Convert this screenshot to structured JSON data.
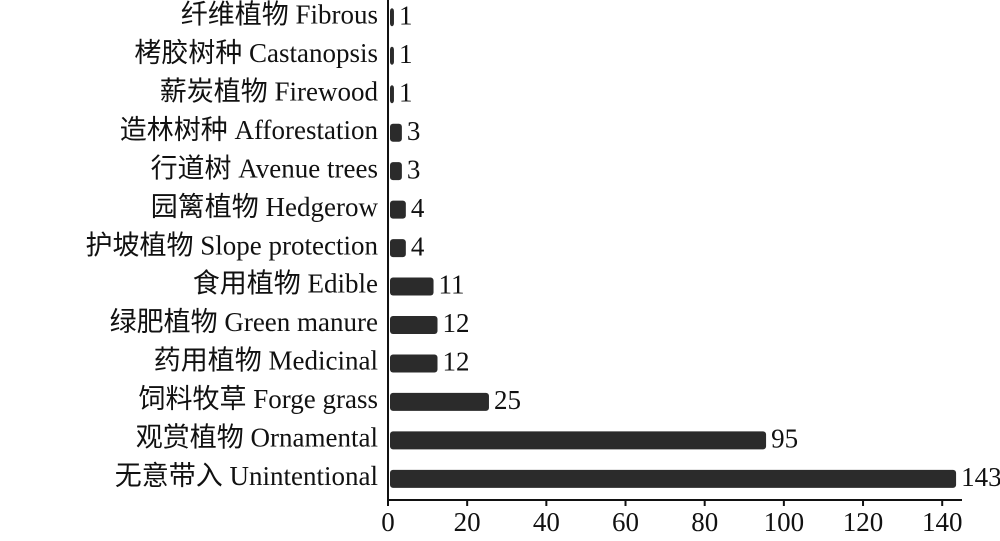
{
  "chart_data": {
    "type": "barh",
    "categories": [
      "纤维植物 Fibrous",
      "栲胶树种 Castanopsis",
      "薪炭植物 Firewood",
      "造林树种 Afforestation",
      "行道树 Avenue trees",
      "园篱植物 Hedgerow",
      "护坡植物 Slope protection",
      "食用植物 Edible",
      "绿肥植物 Green manure",
      "药用植物 Medicinal",
      "饲料牧草 Forge grass",
      "观赏植物 Ornamental",
      "无意带入 Unintentional"
    ],
    "values": [
      1,
      1,
      1,
      3,
      3,
      4,
      4,
      11,
      12,
      12,
      25,
      95,
      143
    ],
    "color": "#2b2b2b",
    "xlim": [
      0,
      145
    ],
    "xticks": [
      0,
      20,
      40,
      60,
      80,
      100,
      120,
      140
    ],
    "grid": false
  }
}
